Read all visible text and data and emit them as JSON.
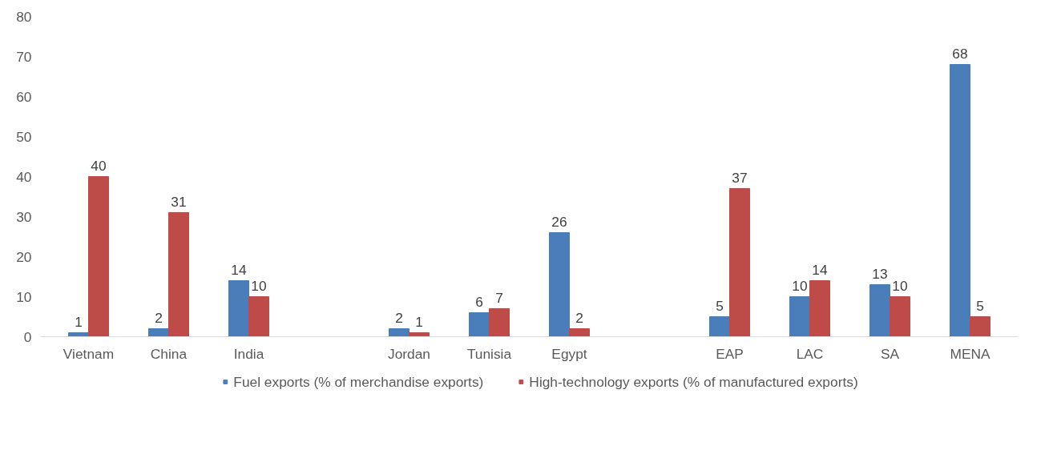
{
  "chart_data": {
    "type": "bar",
    "categories": [
      "Vietnam",
      "China",
      "India",
      null,
      "Jordan",
      "Tunisia",
      "Egypt",
      null,
      "EAP",
      "LAC",
      "SA",
      "MENA"
    ],
    "series": [
      {
        "name": "Fuel exports (% of merchandise exports)",
        "color": "#4a7ebb",
        "values": [
          1,
          2,
          14,
          null,
          2,
          6,
          26,
          null,
          5,
          10,
          13,
          68
        ]
      },
      {
        "name": "High-technology exports (% of manufactured exports)",
        "color": "#be4b48",
        "values": [
          40,
          31,
          10,
          null,
          1,
          7,
          2,
          null,
          37,
          14,
          10,
          5
        ]
      }
    ],
    "ylim": [
      0,
      80
    ],
    "yticks": [
      0,
      10,
      20,
      30,
      40,
      50,
      60,
      70,
      80
    ],
    "grid": false,
    "legend": "bottom",
    "data_labels": true
  }
}
